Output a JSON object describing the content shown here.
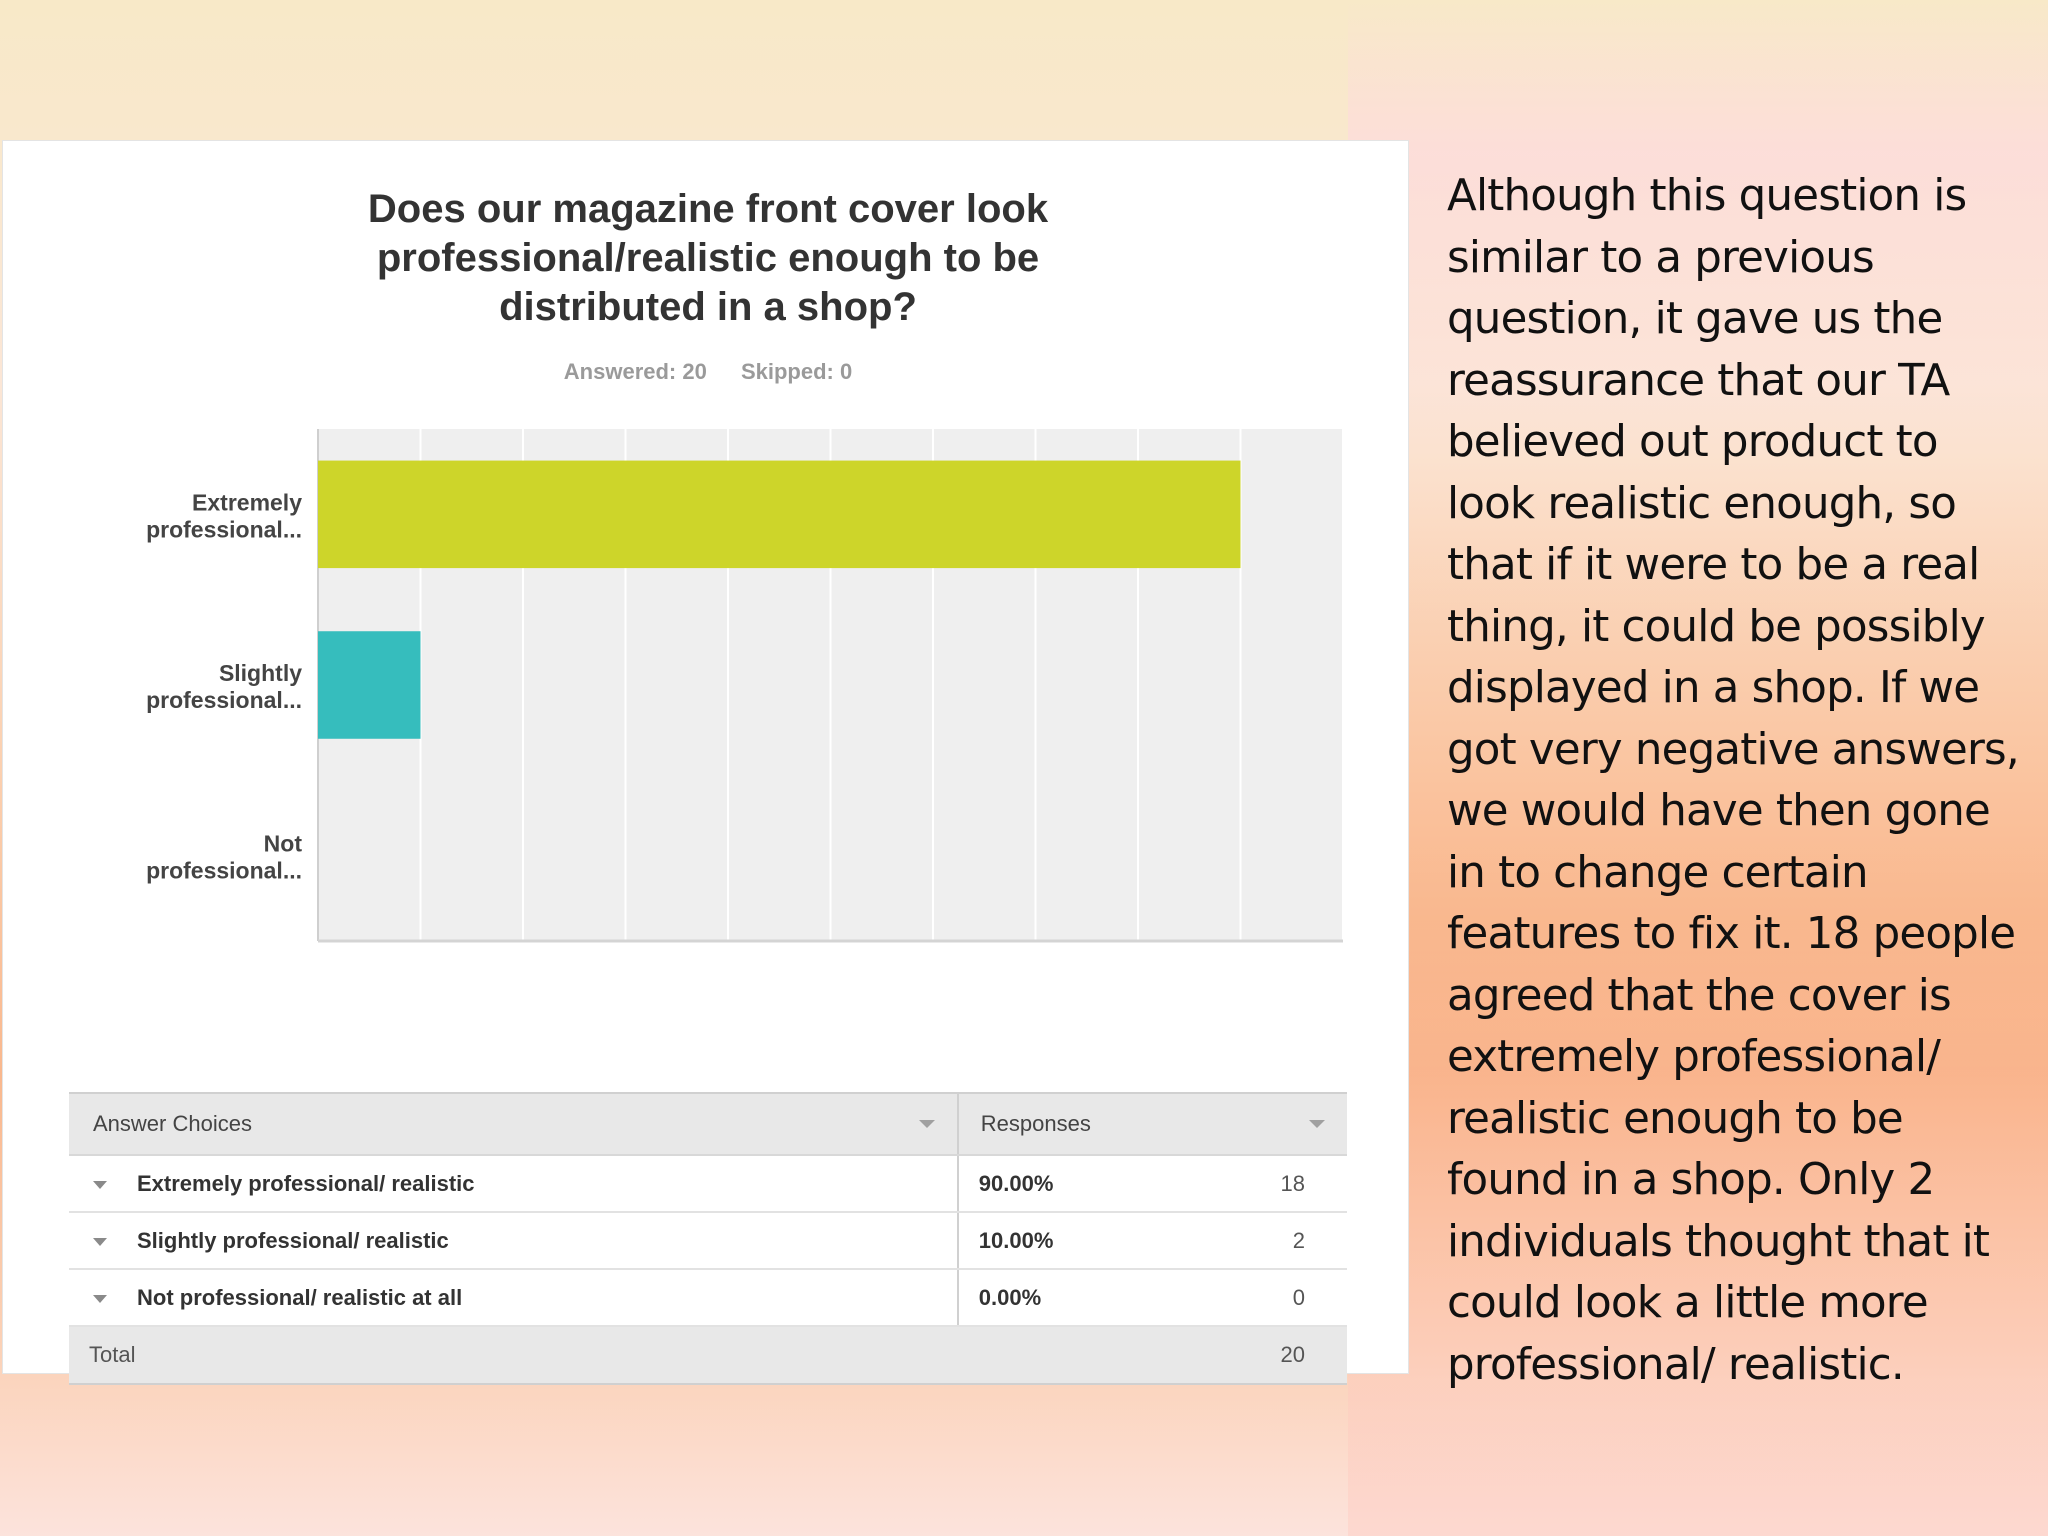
{
  "chart_data": {
    "type": "bar",
    "orientation": "horizontal",
    "title": "Does our magazine front cover look professional/realistic enough to be distributed in a shop?",
    "categories": [
      "Extremely professional...",
      "Slightly professional...",
      "Not professional..."
    ],
    "values": [
      90,
      10,
      0
    ],
    "colors": [
      "#cdd52a",
      "#36bdbd",
      "#cccccc"
    ],
    "x_ticks": [
      "0%",
      "10%",
      "20%",
      "30%",
      "40%",
      "50%",
      "60%",
      "70%",
      "80%",
      "90%",
      "100%"
    ],
    "xlim": [
      0,
      100
    ],
    "grid": true
  },
  "summary": {
    "answered_label": "Answered: 20",
    "skipped_label": "Skipped: 0"
  },
  "table": {
    "headers": {
      "choices": "Answer Choices",
      "responses": "Responses"
    },
    "rows": [
      {
        "choice": "Extremely professional/ realistic",
        "percent": "90.00%",
        "count": "18"
      },
      {
        "choice": "Slightly professional/ realistic",
        "percent": "10.00%",
        "count": "2"
      },
      {
        "choice": "Not professional/ realistic at all",
        "percent": "0.00%",
        "count": "0"
      }
    ],
    "total_label": "Total",
    "total_value": "20"
  },
  "commentary": {
    "text": "Although this question is similar to a previous question, it gave us the reassurance that our TA believed out product to look realistic enough, so that if it were to be a real thing, it could be possibly displayed in a shop. If we got very negative answers, we would have then gone in to change certain features to fix it. 18 people agreed that the cover is extremely professional/ realistic enough to be found in a shop. Only 2 individuals thought that it could look a little more professional/ realistic."
  }
}
